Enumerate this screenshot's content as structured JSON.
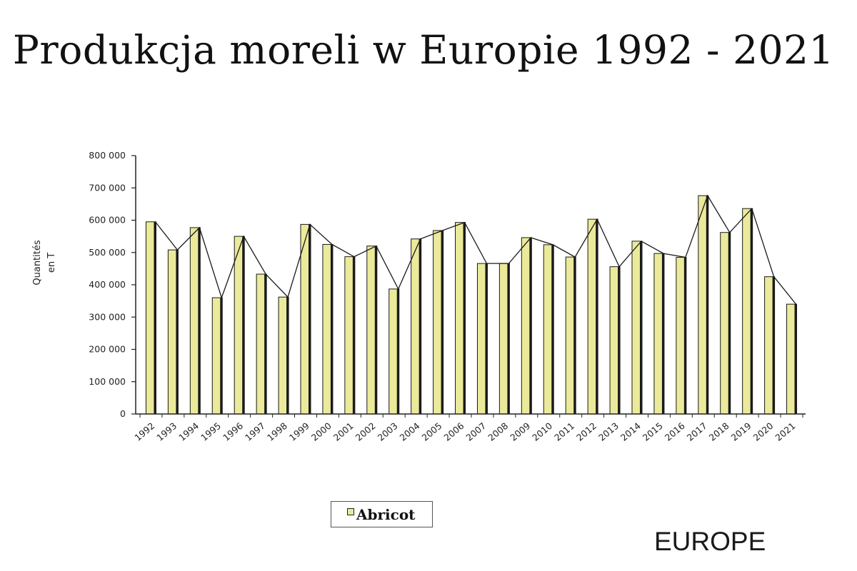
{
  "title": "Produkcja moreli w Europie 1992 - 2021",
  "region_label": "EUROPE",
  "legend": {
    "label": "Abricot"
  },
  "colors": {
    "bar_fill": "#eaea9a",
    "bar_shadow": "#1a1a1a",
    "axis": "#222222"
  },
  "chart_data": {
    "type": "bar",
    "title": "",
    "ylabel": "Quantités en T",
    "ylabel_lines": [
      "Quantités",
      "en T"
    ],
    "xlabel": "",
    "ylim": [
      0,
      800000
    ],
    "ytick_labels": [
      "0",
      "100 000",
      "200 000",
      "300 000",
      "400 000",
      "500 000",
      "600 000",
      "700 000",
      "800 000"
    ],
    "grid": false,
    "legend_position": "bottom-center",
    "categories": [
      "1992",
      "1993",
      "1994",
      "1995",
      "1996",
      "1997",
      "1998",
      "1999",
      "2000",
      "2001",
      "2002",
      "2003",
      "2004",
      "2005",
      "2006",
      "2007",
      "2008",
      "2009",
      "2010",
      "2011",
      "2012",
      "2013",
      "2014",
      "2015",
      "2016",
      "2017",
      "2018",
      "2019",
      "2020",
      "2021"
    ],
    "series": [
      {
        "name": "Abricot",
        "values": [
          595000,
          508000,
          577000,
          360000,
          550000,
          433000,
          362000,
          587000,
          525000,
          487000,
          520000,
          387000,
          542000,
          568000,
          593000,
          466000,
          466000,
          546000,
          524000,
          486000,
          603000,
          456000,
          535000,
          497000,
          485000,
          676000,
          562000,
          636000,
          425000,
          340000
        ]
      }
    ]
  }
}
